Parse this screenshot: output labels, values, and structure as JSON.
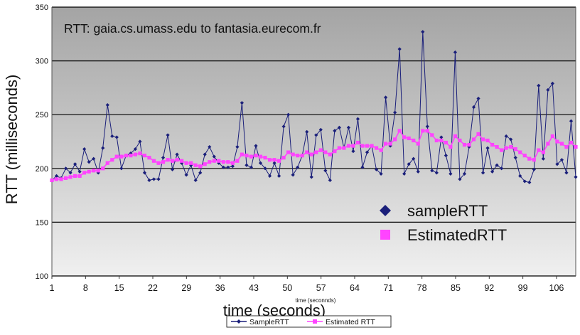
{
  "chart_data": {
    "type": "line",
    "title": "RTT: gaia.cs.umass.edu to fantasia.eurecom.fr",
    "xlabel": "time (seconds)",
    "xlabel_small": "time (seconnds)",
    "ylabel": "RTT (milliseconds)",
    "ylim": [
      100,
      350
    ],
    "yticks": [
      "100",
      "150",
      "200",
      "250",
      "300",
      "350"
    ],
    "xlim": [
      1,
      110
    ],
    "xticks": [
      "1",
      "8",
      "15",
      "22",
      "29",
      "36",
      "43",
      "50",
      "57",
      "64",
      "71",
      "78",
      "85",
      "92",
      "99",
      "106"
    ],
    "grid": true,
    "series": [
      {
        "name": "SampleRTT",
        "color": "#1a1f7a",
        "marker": "diamond",
        "values": [
          189,
          193,
          191,
          200,
          196,
          204,
          197,
          218,
          206,
          209,
          196,
          219,
          259,
          230,
          229,
          200,
          212,
          214,
          218,
          225,
          196,
          189,
          190,
          190,
          210,
          231,
          199,
          213,
          205,
          194,
          203,
          189,
          196,
          213,
          220,
          211,
          205,
          201,
          201,
          202,
          220,
          261,
          203,
          201,
          221,
          205,
          200,
          193,
          205,
          193,
          239,
          250,
          194,
          201,
          212,
          234,
          192,
          231,
          236,
          198,
          189,
          235,
          238,
          219,
          238,
          216,
          246,
          201,
          215,
          221,
          199,
          195,
          266,
          221,
          252,
          311,
          195,
          204,
          209,
          197,
          327,
          239,
          198,
          196,
          229,
          212,
          195,
          308,
          190,
          195,
          220,
          257,
          265,
          196,
          219,
          197,
          203,
          200,
          230,
          227,
          210,
          193,
          188,
          187,
          199,
          277,
          209,
          273,
          279,
          204,
          208,
          196,
          244,
          192
        ]
      },
      {
        "name": "EstimatedRTT",
        "color": "#ff44ff",
        "marker": "square",
        "values": [
          189,
          190,
          190,
          191,
          192,
          193,
          193,
          196,
          197,
          198,
          198,
          200,
          205,
          208,
          211,
          211,
          212,
          212,
          213,
          214,
          212,
          210,
          207,
          205,
          206,
          208,
          207,
          208,
          207,
          205,
          205,
          203,
          202,
          204,
          206,
          207,
          207,
          206,
          206,
          205,
          207,
          213,
          212,
          211,
          212,
          211,
          210,
          208,
          208,
          207,
          210,
          215,
          213,
          212,
          212,
          215,
          213,
          215,
          217,
          215,
          213,
          216,
          219,
          219,
          221,
          221,
          224,
          221,
          221,
          221,
          219,
          217,
          223,
          223,
          227,
          235,
          229,
          228,
          226,
          223,
          235,
          235,
          231,
          226,
          226,
          224,
          220,
          230,
          226,
          222,
          222,
          227,
          232,
          227,
          226,
          222,
          220,
          217,
          219,
          220,
          218,
          215,
          212,
          209,
          208,
          217,
          215,
          223,
          230,
          225,
          223,
          220,
          224,
          220
        ]
      }
    ],
    "legend_inside": [
      {
        "label": "sampleRTT",
        "color": "#1a1f7a",
        "marker": "diamond"
      },
      {
        "label": "EstimatedRTT",
        "color": "#ff44ff",
        "marker": "square"
      }
    ],
    "legend_bottom": [
      {
        "label": "SampleRTT",
        "color": "#1a1f7a",
        "marker": "diamond"
      },
      {
        "label": "Estimated RTT",
        "color": "#ff44ff",
        "marker": "square"
      }
    ],
    "legend_placement": "center-right (inside), bottom-center (box)",
    "background": "vertical gradient, dark grey top to light grey bottom"
  }
}
